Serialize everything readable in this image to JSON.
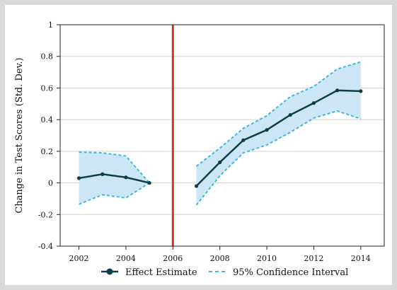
{
  "chart_data": {
    "type": "line",
    "title": "",
    "xlabel": "",
    "ylabel": "Change in Test Scores (Std. Dev.)",
    "xlim": [
      2001.2,
      2015.0
    ],
    "ylim": [
      -0.4,
      1.0
    ],
    "x_ticks": [
      2002,
      2004,
      2006,
      2008,
      2010,
      2012,
      2014
    ],
    "y_ticks": [
      -0.4,
      -0.2,
      0,
      0.2,
      0.4,
      0.6,
      0.8,
      1
    ],
    "x_tick_labels": [
      "2002",
      "2004",
      "2006",
      "2008",
      "2010",
      "2012",
      "2014"
    ],
    "y_tick_labels": [
      "-0.4",
      "-0.2",
      "0",
      "0.2",
      "0.4",
      "0.6",
      "0.8",
      "1"
    ],
    "grid": "horizontal",
    "reference_line": {
      "x": 2006,
      "color": "#c0392b"
    },
    "segments": [
      {
        "x": [
          2002,
          2003,
          2004,
          2005
        ],
        "estimate": [
          0.03,
          0.055,
          0.035,
          0.0
        ],
        "upper": [
          0.195,
          0.19,
          0.17,
          0.0
        ],
        "lower": [
          -0.135,
          -0.075,
          -0.095,
          0.0
        ]
      },
      {
        "x": [
          2007,
          2008,
          2009,
          2010,
          2011,
          2012,
          2013,
          2014
        ],
        "estimate": [
          -0.02,
          0.13,
          0.27,
          0.335,
          0.43,
          0.505,
          0.585,
          0.58
        ],
        "upper": [
          0.105,
          0.22,
          0.345,
          0.425,
          0.545,
          0.61,
          0.72,
          0.765
        ],
        "lower": [
          -0.14,
          0.045,
          0.19,
          0.24,
          0.32,
          0.41,
          0.455,
          0.405
        ]
      }
    ],
    "colors": {
      "estimate": "#0d3d4a",
      "ci_line": "#3cb8e0",
      "ci_fill": "#cde6f5",
      "grid": "#d0d0d0"
    },
    "legend": {
      "position": "bottom",
      "items": [
        {
          "label": "Effect Estimate",
          "style": "estimate"
        },
        {
          "label": "95% Confidence Interval",
          "style": "ci"
        }
      ]
    }
  }
}
